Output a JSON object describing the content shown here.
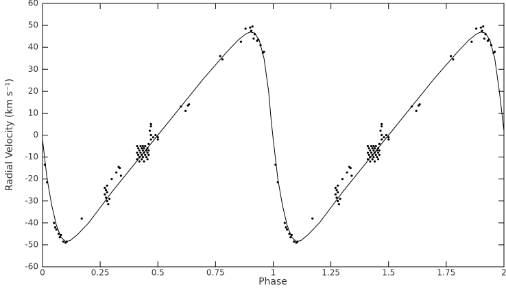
{
  "chart_data": {
    "type": "scatter",
    "xlabel": "Phase",
    "ylabel": "Radial Velocity (km s⁻¹)",
    "xlim": [
      0,
      2
    ],
    "ylim": [
      -60,
      60
    ],
    "xticks": [
      0,
      0.25,
      0.5,
      0.75,
      1,
      1.25,
      1.5,
      1.75,
      2
    ],
    "yticks": [
      -60,
      -50,
      -40,
      -30,
      -20,
      -10,
      0,
      10,
      20,
      30,
      40,
      50,
      60
    ],
    "series": [
      {
        "type": "scatter",
        "color": "#000000",
        "x": [
          0.01,
          0.02,
          0.05,
          0.055,
          0.06,
          0.07,
          0.075,
          0.08,
          0.09,
          0.1,
          0.105,
          0.17,
          0.27,
          0.275,
          0.28,
          0.27,
          0.275,
          0.28,
          0.285,
          0.28,
          0.29,
          0.3,
          0.32,
          0.33,
          0.335,
          0.34,
          0.41,
          0.41,
          0.41,
          0.415,
          0.415,
          0.42,
          0.42,
          0.42,
          0.425,
          0.425,
          0.43,
          0.43,
          0.43,
          0.435,
          0.435,
          0.435,
          0.44,
          0.44,
          0.44,
          0.445,
          0.445,
          0.45,
          0.45,
          0.455,
          0.455,
          0.455,
          0.46,
          0.46,
          0.46,
          0.47,
          0.465,
          0.47,
          0.47,
          0.47,
          0.48,
          0.49,
          0.5,
          0.5,
          0.6,
          0.62,
          0.63,
          0.635,
          0.77,
          0.78,
          0.86,
          0.88,
          0.9,
          0.905,
          0.91,
          0.915,
          0.92,
          0.93,
          0.935,
          0.945,
          0.955,
          0.96,
          1.01,
          1.02,
          1.05,
          1.055,
          1.06,
          1.07,
          1.075,
          1.08,
          1.09,
          1.1,
          1.105,
          1.17,
          1.27,
          1.275,
          1.28,
          1.27,
          1.275,
          1.28,
          1.285,
          1.28,
          1.29,
          1.3,
          1.32,
          1.33,
          1.335,
          1.34,
          1.41,
          1.41,
          1.41,
          1.415,
          1.415,
          1.42,
          1.42,
          1.42,
          1.425,
          1.425,
          1.43,
          1.43,
          1.43,
          1.435,
          1.435,
          1.435,
          1.44,
          1.44,
          1.44,
          1.445,
          1.445,
          1.45,
          1.45,
          1.455,
          1.455,
          1.455,
          1.46,
          1.46,
          1.46,
          1.47,
          1.465,
          1.47,
          1.47,
          1.47,
          1.48,
          1.49,
          1.5,
          1.5,
          1.6,
          1.62,
          1.63,
          1.635,
          1.77,
          1.78,
          1.86,
          1.88,
          1.9,
          1.905,
          1.91,
          1.915,
          1.92,
          1.93,
          1.935,
          1.945,
          1.955,
          1.96
        ],
        "values": [
          -13.5,
          -21.5,
          -40,
          -42,
          -43,
          -45,
          -46.5,
          -45.5,
          -48.5,
          -49,
          -48.5,
          -38,
          -24,
          -25,
          -23,
          -27,
          -28.5,
          -30,
          -31.5,
          -26,
          -29,
          -20,
          -17,
          -14.5,
          -15,
          -18.5,
          -5,
          -8,
          -11,
          -6,
          -9,
          -7,
          -10,
          -12,
          -5,
          -8,
          -6,
          -9,
          -11,
          -5,
          -7,
          -10,
          -6,
          -8,
          -12,
          -5,
          -9,
          -7,
          -10,
          -6,
          -8,
          -11,
          -7,
          -9,
          -4,
          -2,
          2,
          4,
          5,
          0,
          -1,
          0,
          -2,
          -1,
          13,
          11,
          13.5,
          14,
          36,
          34.5,
          42.5,
          48.5,
          49,
          47.5,
          49.5,
          44,
          46,
          43,
          43.5,
          41,
          37.5,
          38,
          -13.5,
          -21.5,
          -40,
          -42,
          -43,
          -45,
          -46.5,
          -45.5,
          -48.5,
          -49,
          -48.5,
          -38,
          -24,
          -25,
          -23,
          -27,
          -28.5,
          -30,
          -31.5,
          -26,
          -29,
          -20,
          -17,
          -14.5,
          -15,
          -18.5,
          -5,
          -8,
          -11,
          -6,
          -9,
          -7,
          -10,
          -12,
          -5,
          -8,
          -6,
          -9,
          -11,
          -5,
          -7,
          -10,
          -6,
          -8,
          -12,
          -5,
          -9,
          -7,
          -10,
          -6,
          -8,
          -11,
          -7,
          -9,
          -4,
          -2,
          2,
          4,
          5,
          0,
          -1,
          0,
          -2,
          -1,
          13,
          11,
          13.5,
          14,
          36,
          34.5,
          42.5,
          48.5,
          49,
          47.5,
          49.5,
          44,
          46,
          43,
          43.5,
          41,
          37.5,
          38
        ]
      },
      {
        "type": "line",
        "color": "#000000",
        "x": [
          0,
          0.02,
          0.04,
          0.06,
          0.08,
          0.1,
          0.12,
          0.15,
          0.2,
          0.25,
          0.3,
          0.35,
          0.4,
          0.45,
          0.5,
          0.55,
          0.6,
          0.65,
          0.7,
          0.75,
          0.8,
          0.85,
          0.88,
          0.9,
          0.92,
          0.94,
          0.96,
          0.98,
          0.99,
          1,
          1.02,
          1.04,
          1.06,
          1.08,
          1.1,
          1.12,
          1.15,
          1.2,
          1.25,
          1.3,
          1.35,
          1.4,
          1.45,
          1.5,
          1.55,
          1.6,
          1.65,
          1.7,
          1.75,
          1.8,
          1.85,
          1.88,
          1.9,
          1.92,
          1.94,
          1.96,
          1.98,
          2
        ],
        "values": [
          -2,
          -20,
          -32,
          -41,
          -46.5,
          -48.5,
          -48,
          -45.5,
          -40,
          -33,
          -26,
          -19.5,
          -13,
          -6.5,
          0,
          6.5,
          13,
          19.5,
          26,
          32,
          38,
          43.5,
          46,
          47,
          46.5,
          43,
          35,
          20,
          8,
          -2,
          -20,
          -32,
          -41,
          -46.5,
          -48.5,
          -48,
          -45.5,
          -40,
          -33,
          -26,
          -19.5,
          -13,
          -6.5,
          0,
          6.5,
          13,
          19.5,
          26,
          32,
          38,
          43.5,
          46,
          47,
          46.5,
          43,
          35,
          20,
          2
        ]
      }
    ]
  }
}
